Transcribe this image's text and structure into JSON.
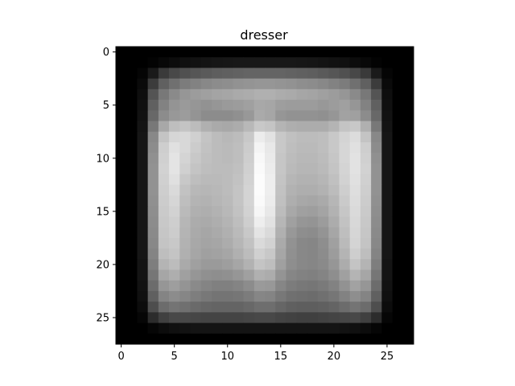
{
  "chart_data": {
    "type": "heatmap",
    "title": "dresser",
    "xlabel": "",
    "ylabel": "",
    "rows": 28,
    "cols": 28,
    "x_ticks": [
      0,
      5,
      10,
      15,
      20,
      25
    ],
    "y_ticks": [
      0,
      5,
      10,
      15,
      20,
      25
    ],
    "xlim": [
      -0.5,
      27.5
    ],
    "ylim": [
      27.5,
      -0.5
    ],
    "colormap": "gray",
    "grid": false,
    "values": [
      [
        0,
        0,
        0,
        0,
        0,
        0,
        0,
        0,
        0,
        0,
        0,
        0,
        0,
        0,
        0,
        0,
        0,
        0,
        0,
        0,
        0,
        0,
        0,
        0,
        0,
        0,
        0,
        0
      ],
      [
        0,
        0,
        0,
        3,
        8,
        12,
        16,
        18,
        20,
        22,
        23,
        24,
        24,
        24,
        24,
        24,
        24,
        23,
        22,
        20,
        18,
        16,
        12,
        8,
        3,
        0,
        0,
        0
      ],
      [
        0,
        0,
        5,
        26,
        58,
        72,
        80,
        86,
        90,
        94,
        96,
        98,
        100,
        100,
        100,
        100,
        98,
        96,
        94,
        90,
        86,
        80,
        72,
        58,
        26,
        5,
        0,
        0
      ],
      [
        0,
        0,
        10,
        60,
        96,
        112,
        124,
        130,
        136,
        140,
        142,
        146,
        148,
        150,
        150,
        148,
        146,
        142,
        140,
        136,
        130,
        124,
        112,
        96,
        60,
        10,
        0,
        0
      ],
      [
        0,
        0,
        14,
        84,
        120,
        138,
        150,
        156,
        160,
        164,
        166,
        170,
        172,
        176,
        176,
        172,
        170,
        166,
        164,
        160,
        156,
        150,
        138,
        120,
        84,
        14,
        0,
        0
      ],
      [
        0,
        0,
        16,
        96,
        130,
        148,
        154,
        150,
        146,
        150,
        154,
        156,
        160,
        168,
        166,
        158,
        156,
        156,
        156,
        152,
        156,
        160,
        150,
        130,
        96,
        16,
        0,
        0
      ],
      [
        0,
        0,
        18,
        104,
        140,
        152,
        156,
        148,
        140,
        140,
        140,
        144,
        152,
        170,
        166,
        150,
        146,
        146,
        146,
        144,
        150,
        162,
        160,
        140,
        104,
        18,
        0,
        0
      ],
      [
        0,
        0,
        20,
        120,
        168,
        190,
        196,
        188,
        176,
        170,
        168,
        172,
        184,
        200,
        196,
        180,
        174,
        172,
        172,
        172,
        180,
        196,
        200,
        176,
        120,
        20,
        0,
        0
      ],
      [
        0,
        0,
        22,
        136,
        196,
        214,
        216,
        208,
        196,
        188,
        184,
        188,
        200,
        236,
        226,
        200,
        192,
        188,
        188,
        190,
        200,
        212,
        220,
        196,
        136,
        22,
        0,
        0
      ],
      [
        0,
        0,
        22,
        140,
        206,
        224,
        216,
        204,
        194,
        188,
        186,
        190,
        204,
        244,
        232,
        200,
        190,
        186,
        186,
        190,
        200,
        214,
        224,
        206,
        140,
        22,
        0,
        0
      ],
      [
        0,
        0,
        22,
        144,
        208,
        228,
        212,
        200,
        192,
        188,
        186,
        190,
        206,
        248,
        234,
        198,
        188,
        184,
        184,
        188,
        198,
        214,
        226,
        208,
        144,
        22,
        0,
        0
      ],
      [
        0,
        0,
        22,
        146,
        210,
        228,
        208,
        196,
        190,
        188,
        188,
        192,
        208,
        250,
        236,
        198,
        186,
        182,
        182,
        186,
        196,
        212,
        226,
        210,
        146,
        22,
        0,
        0
      ],
      [
        0,
        0,
        22,
        146,
        208,
        224,
        200,
        190,
        186,
        186,
        188,
        194,
        210,
        252,
        238,
        196,
        182,
        178,
        178,
        182,
        192,
        210,
        224,
        208,
        146,
        22,
        0,
        0
      ],
      [
        0,
        0,
        22,
        146,
        206,
        218,
        194,
        184,
        182,
        184,
        188,
        196,
        212,
        252,
        238,
        194,
        178,
        174,
        174,
        178,
        188,
        206,
        222,
        206,
        146,
        22,
        0,
        0
      ],
      [
        0,
        0,
        22,
        144,
        204,
        214,
        190,
        180,
        178,
        182,
        186,
        196,
        212,
        250,
        236,
        192,
        174,
        168,
        166,
        170,
        182,
        202,
        220,
        204,
        144,
        22,
        0,
        0
      ],
      [
        0,
        0,
        22,
        142,
        202,
        210,
        186,
        176,
        174,
        178,
        184,
        194,
        210,
        246,
        232,
        188,
        168,
        160,
        158,
        164,
        178,
        198,
        218,
        202,
        142,
        22,
        0,
        0
      ],
      [
        0,
        0,
        22,
        140,
        200,
        206,
        182,
        172,
        170,
        174,
        180,
        190,
        206,
        238,
        226,
        182,
        160,
        150,
        148,
        156,
        172,
        194,
        216,
        200,
        140,
        22,
        0,
        0
      ],
      [
        0,
        0,
        22,
        138,
        198,
        204,
        180,
        170,
        166,
        170,
        176,
        186,
        200,
        228,
        218,
        176,
        152,
        142,
        140,
        148,
        166,
        190,
        214,
        198,
        138,
        22,
        0,
        0
      ],
      [
        0,
        0,
        22,
        136,
        196,
        200,
        178,
        168,
        164,
        166,
        172,
        182,
        194,
        218,
        210,
        170,
        146,
        136,
        134,
        142,
        160,
        186,
        212,
        196,
        136,
        22,
        0,
        0
      ],
      [
        0,
        0,
        22,
        132,
        190,
        196,
        176,
        166,
        160,
        162,
        166,
        176,
        188,
        208,
        200,
        166,
        144,
        136,
        134,
        140,
        156,
        180,
        206,
        190,
        132,
        22,
        0,
        0
      ],
      [
        0,
        0,
        20,
        126,
        180,
        188,
        170,
        160,
        154,
        154,
        158,
        166,
        178,
        196,
        190,
        160,
        142,
        136,
        134,
        138,
        150,
        172,
        196,
        180,
        126,
        20,
        0,
        0
      ],
      [
        0,
        0,
        20,
        118,
        166,
        174,
        160,
        150,
        144,
        142,
        144,
        150,
        160,
        176,
        172,
        148,
        134,
        130,
        128,
        132,
        142,
        160,
        180,
        166,
        118,
        20,
        0,
        0
      ],
      [
        0,
        0,
        18,
        108,
        150,
        158,
        148,
        138,
        132,
        128,
        128,
        132,
        140,
        154,
        152,
        134,
        124,
        120,
        118,
        122,
        130,
        146,
        162,
        150,
        108,
        18,
        0,
        0
      ],
      [
        0,
        0,
        16,
        96,
        132,
        140,
        134,
        126,
        120,
        116,
        116,
        118,
        124,
        134,
        132,
        120,
        112,
        110,
        108,
        112,
        118,
        130,
        142,
        132,
        96,
        16,
        0,
        0
      ],
      [
        0,
        0,
        12,
        78,
        108,
        116,
        112,
        106,
        102,
        100,
        100,
        100,
        104,
        110,
        110,
        102,
        96,
        94,
        94,
        96,
        100,
        108,
        116,
        108,
        78,
        12,
        0,
        0
      ],
      [
        0,
        0,
        6,
        44,
        64,
        72,
        72,
        70,
        68,
        68,
        68,
        68,
        70,
        72,
        72,
        68,
        66,
        64,
        64,
        66,
        68,
        70,
        72,
        64,
        44,
        6,
        0,
        0
      ],
      [
        0,
        0,
        0,
        6,
        12,
        16,
        18,
        20,
        20,
        20,
        20,
        20,
        20,
        20,
        20,
        20,
        20,
        20,
        20,
        20,
        20,
        18,
        16,
        12,
        6,
        0,
        0,
        0
      ],
      [
        0,
        0,
        0,
        0,
        0,
        0,
        0,
        0,
        0,
        0,
        0,
        0,
        0,
        0,
        0,
        0,
        0,
        0,
        0,
        0,
        0,
        0,
        0,
        0,
        0,
        0,
        0,
        0
      ]
    ]
  }
}
